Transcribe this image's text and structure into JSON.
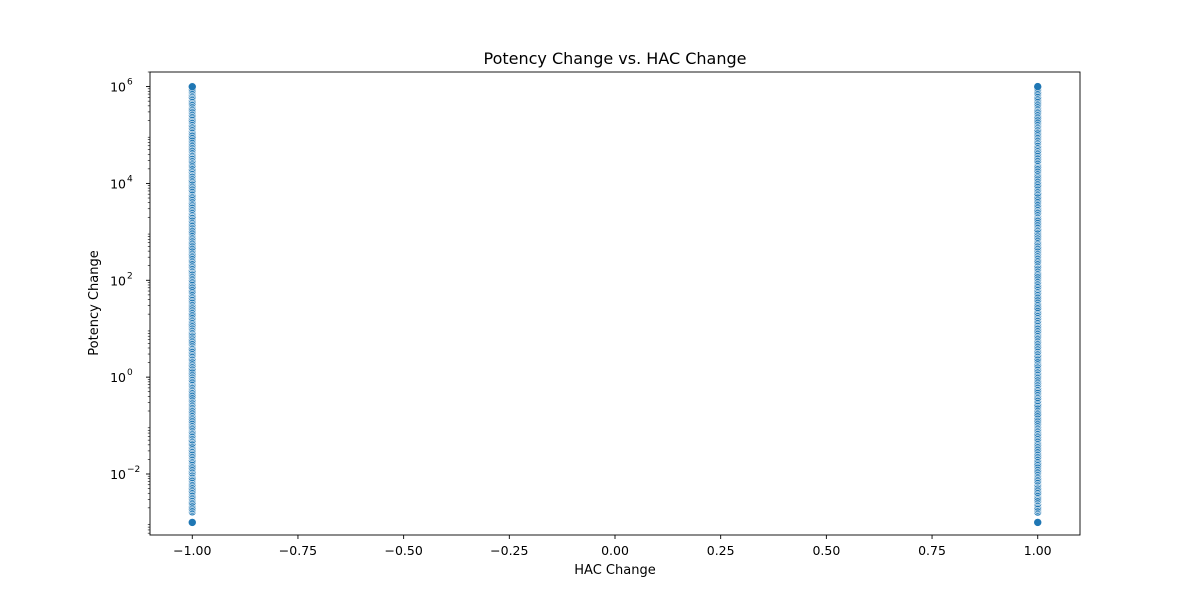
{
  "chart_data": {
    "type": "scatter",
    "title": "Potency Change vs. HAC Change",
    "xlabel": "HAC Change",
    "ylabel": "Potency Change",
    "xlim": [
      -1.1,
      1.1
    ],
    "ylim": [
      0.00055,
      2000000
    ],
    "yscale": "log",
    "grid": false,
    "legend": "none",
    "x_ticks": [
      {
        "value": -1.0,
        "label": "−1.00"
      },
      {
        "value": -0.75,
        "label": "−0.75"
      },
      {
        "value": -0.5,
        "label": "−0.50"
      },
      {
        "value": -0.25,
        "label": "−0.25"
      },
      {
        "value": 0.0,
        "label": "0.00"
      },
      {
        "value": 0.25,
        "label": "0.25"
      },
      {
        "value": 0.5,
        "label": "0.50"
      },
      {
        "value": 0.75,
        "label": "0.75"
      },
      {
        "value": 1.0,
        "label": "1.00"
      }
    ],
    "y_ticks": [
      {
        "value": 0.01,
        "base": "10",
        "exp": "−2"
      },
      {
        "value": 1,
        "base": "10",
        "exp": "0"
      },
      {
        "value": 100,
        "base": "10",
        "exp": "2"
      },
      {
        "value": 10000,
        "base": "10",
        "exp": "4"
      },
      {
        "value": 1000000,
        "base": "10",
        "exp": "6"
      }
    ],
    "series": [
      {
        "color": "#1f77b4",
        "x": [
          -1.0,
          1.0
        ],
        "y_min": [
          0.001,
          0.001
        ],
        "y_max": [
          1000000,
          1000000
        ],
        "isolated_points": [
          {
            "x": -1.0,
            "y": 0.001
          },
          {
            "x": 1.0,
            "y": 0.001
          }
        ]
      }
    ]
  }
}
